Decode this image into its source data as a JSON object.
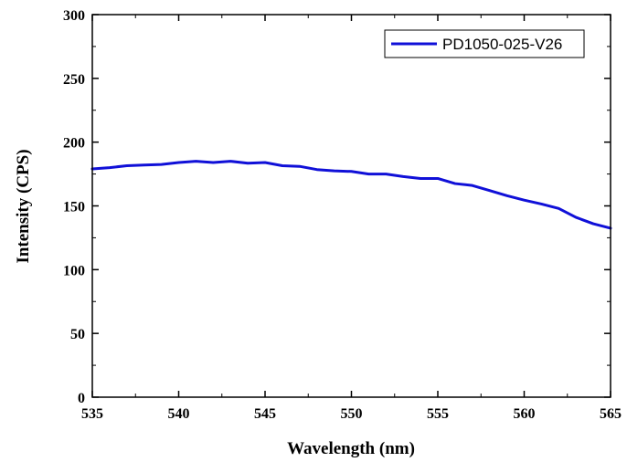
{
  "chart_data": {
    "type": "line",
    "title": "",
    "xlabel": "Wavelength (nm)",
    "ylabel": "Intensity (CPS)",
    "xlim": [
      535,
      565
    ],
    "ylim": [
      0,
      300
    ],
    "xticks": [
      535,
      540,
      545,
      550,
      555,
      560,
      565
    ],
    "yticks": [
      0,
      50,
      100,
      150,
      200,
      250,
      300
    ],
    "xtick_labels": [
      "535",
      "540",
      "545",
      "550",
      "555",
      "560",
      "565"
    ],
    "ytick_labels": [
      "0",
      "50",
      "100",
      "150",
      "200",
      "250",
      "300"
    ],
    "grid": false,
    "legend_position": "top-right",
    "series": [
      {
        "name": "PD1050-025-V26",
        "color": "#1010d8",
        "x": [
          535,
          536,
          537,
          538,
          539,
          540,
          541,
          542,
          543,
          544,
          545,
          546,
          547,
          548,
          549,
          550,
          551,
          552,
          553,
          554,
          555,
          556,
          557,
          558,
          559,
          560,
          561,
          562,
          563,
          564,
          565
        ],
        "y": [
          179,
          180,
          181.5,
          182,
          182.5,
          184,
          185,
          184,
          185,
          183.5,
          184,
          181.5,
          181,
          178.5,
          177.5,
          177,
          175,
          175,
          173,
          171.5,
          171.5,
          167.5,
          166,
          162,
          158,
          154.5,
          151.5,
          148,
          141,
          136,
          132.5
        ]
      }
    ]
  }
}
